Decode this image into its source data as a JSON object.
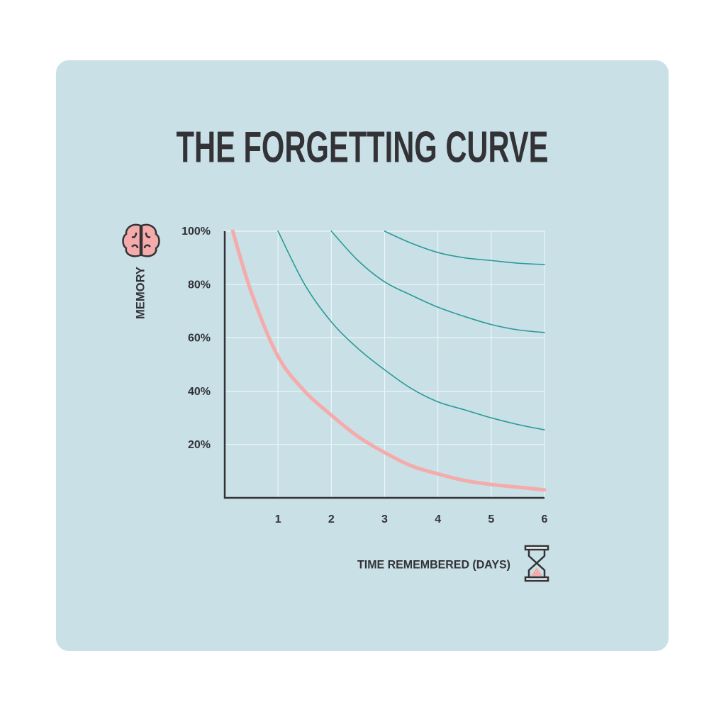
{
  "chart_data": {
    "type": "line",
    "title": "THE FORGETTING CURVE",
    "y_label": "MEMORY",
    "x_label": "TIME REMEMBERED (DAYS)",
    "x": [
      0.15,
      0.5,
      1,
      1.5,
      2,
      2.5,
      3,
      3.5,
      4,
      4.5,
      5,
      5.5,
      6
    ],
    "series": [
      {
        "color": "#f4abaa",
        "values": [
          100,
          77,
          53,
          40,
          31,
          23,
          17,
          12,
          9,
          6.5,
          5,
          4,
          3
        ]
      },
      {
        "color": "#2a9a98",
        "values": [
          null,
          null,
          100,
          80,
          66,
          56,
          48,
          41,
          36,
          33,
          30,
          27.5,
          25.5
        ]
      },
      {
        "color": "#2a9a98",
        "values": [
          null,
          null,
          null,
          null,
          100,
          89,
          81,
          76,
          71.5,
          68,
          65,
          63,
          62
        ]
      },
      {
        "color": "#2a9a98",
        "values": [
          null,
          null,
          null,
          null,
          null,
          null,
          100,
          95.5,
          92,
          90,
          89,
          88,
          87.5
        ]
      }
    ],
    "xlim": [
      0,
      6
    ],
    "ylim": [
      0,
      100
    ],
    "xticks": [
      1,
      2,
      3,
      4,
      5,
      6
    ],
    "yticks": [
      {
        "value": 20,
        "label": "20%"
      },
      {
        "value": 40,
        "label": "40%"
      },
      {
        "value": 60,
        "label": "60%"
      },
      {
        "value": 80,
        "label": "80%"
      },
      {
        "value": 100,
        "label": "100%"
      }
    ],
    "grid": true
  }
}
